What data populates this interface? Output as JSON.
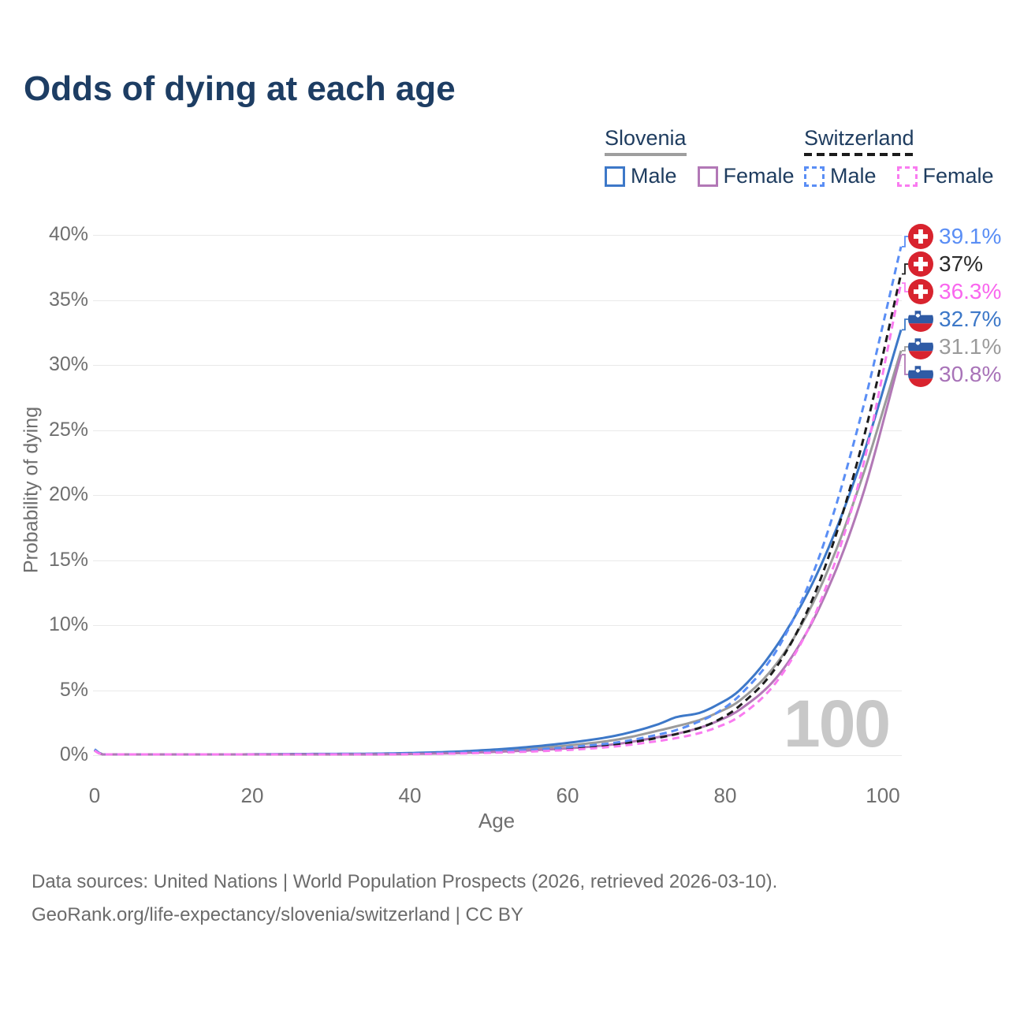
{
  "title": "Odds of dying at each age",
  "watermark": "100",
  "legend": {
    "groups": [
      {
        "name": "Slovenia",
        "line_style": "solid",
        "underline_color": "#9e9e9e",
        "items": [
          {
            "label": "Male",
            "color": "#3d78c8"
          },
          {
            "label": "Female",
            "color": "#b278b6"
          }
        ]
      },
      {
        "name": "Switzerland",
        "line_style": "dashed",
        "underline_color": "#1b1b1b",
        "items": [
          {
            "label": "Male",
            "color": "#5a8ef5"
          },
          {
            "label": "Female",
            "color": "#f97bf0"
          }
        ]
      }
    ]
  },
  "chart_data": {
    "type": "line",
    "title": "Odds of dying at each age",
    "xlabel": "Age",
    "ylabel": "Probability of dying",
    "xlim": [
      0,
      100
    ],
    "ylim_pct": [
      0,
      40
    ],
    "grid": true,
    "x_ticks": [
      0,
      20,
      40,
      60,
      80,
      100
    ],
    "y_ticks_pct": [
      0,
      5,
      10,
      15,
      20,
      25,
      30,
      35,
      40
    ],
    "ages": [
      0,
      1,
      5,
      10,
      15,
      20,
      25,
      30,
      35,
      40,
      45,
      50,
      55,
      60,
      65,
      70,
      72,
      75,
      77,
      80,
      85,
      90,
      95,
      100
    ],
    "series": [
      {
        "name": "Slovenia",
        "country": "slovenia",
        "sex": "both",
        "color": "#9b9b9b",
        "dash": false,
        "values_pct": [
          0.4,
          0.045,
          0.018,
          0.018,
          0.03,
          0.05,
          0.06,
          0.07,
          0.09,
          0.14,
          0.22,
          0.36,
          0.55,
          0.82,
          1.22,
          1.9,
          2.2,
          2.7,
          3.2,
          4.2,
          7.4,
          12.9,
          21.0,
          31.1
        ],
        "end_label": "31.1%"
      },
      {
        "name": "Slovenia Male",
        "country": "slovenia",
        "sex": "male",
        "color": "#3d78c8",
        "dash": false,
        "values_pct": [
          0.45,
          0.05,
          0.02,
          0.02,
          0.04,
          0.07,
          0.09,
          0.1,
          0.12,
          0.18,
          0.28,
          0.45,
          0.7,
          1.05,
          1.55,
          2.4,
          2.9,
          3.25,
          3.8,
          5.0,
          8.8,
          14.5,
          22.5,
          32.7
        ],
        "end_label": "32.7%"
      },
      {
        "name": "Slovenia Female",
        "country": "slovenia",
        "sex": "female",
        "color": "#b278b6",
        "dash": false,
        "values_pct": [
          0.35,
          0.04,
          0.015,
          0.015,
          0.02,
          0.03,
          0.03,
          0.04,
          0.06,
          0.1,
          0.16,
          0.26,
          0.4,
          0.58,
          0.88,
          1.4,
          1.62,
          2.1,
          2.55,
          3.5,
          6.3,
          11.5,
          19.5,
          30.8
        ],
        "end_label": "30.8%"
      },
      {
        "name": "Switzerland",
        "country": "switzerland",
        "sex": "both",
        "color": "#1c1c1c",
        "dash": true,
        "values_pct": [
          0.38,
          0.035,
          0.014,
          0.014,
          0.025,
          0.045,
          0.055,
          0.065,
          0.08,
          0.11,
          0.17,
          0.25,
          0.38,
          0.56,
          0.85,
          1.35,
          1.6,
          2.1,
          2.6,
          3.8,
          7.2,
          13.5,
          23.5,
          37.0
        ],
        "end_label": "37%"
      },
      {
        "name": "Switzerland Male",
        "country": "switzerland",
        "sex": "male",
        "color": "#5a8ef5",
        "dash": true,
        "values_pct": [
          0.4,
          0.04,
          0.015,
          0.015,
          0.03,
          0.06,
          0.08,
          0.09,
          0.1,
          0.13,
          0.2,
          0.3,
          0.45,
          0.68,
          1.0,
          1.6,
          1.9,
          2.6,
          3.2,
          4.6,
          8.5,
          15.5,
          26.0,
          39.1
        ],
        "end_label": "39.1%"
      },
      {
        "name": "Switzerland Female",
        "country": "switzerland",
        "sex": "female",
        "color": "#f97bf0",
        "dash": true,
        "values_pct": [
          0.35,
          0.03,
          0.012,
          0.012,
          0.02,
          0.03,
          0.03,
          0.04,
          0.05,
          0.08,
          0.13,
          0.2,
          0.3,
          0.45,
          0.7,
          1.1,
          1.3,
          1.7,
          2.1,
          3.0,
          6.0,
          11.8,
          21.5,
          36.3
        ],
        "end_label": "36.3%"
      }
    ],
    "end_label_colors": {
      "39.1%": "#5a8ef5",
      "37%": "#2a2a2a",
      "36.3%": "#f966ee",
      "32.7%": "#3d78c8",
      "31.1%": "#9b9b9b",
      "30.8%": "#a873b8"
    }
  },
  "flag_colors": {
    "swiss_red": "#d8232e",
    "slovenia_blue": "#2f5ba5",
    "slovenia_red": "#d8232e",
    "white": "#ffffff"
  },
  "footer": {
    "line1": "Data sources: United Nations | World Population Prospects (2026, retrieved 2026-03-10).",
    "line2": "GeoRank.org/life-expectancy/slovenia/switzerland | CC BY"
  }
}
